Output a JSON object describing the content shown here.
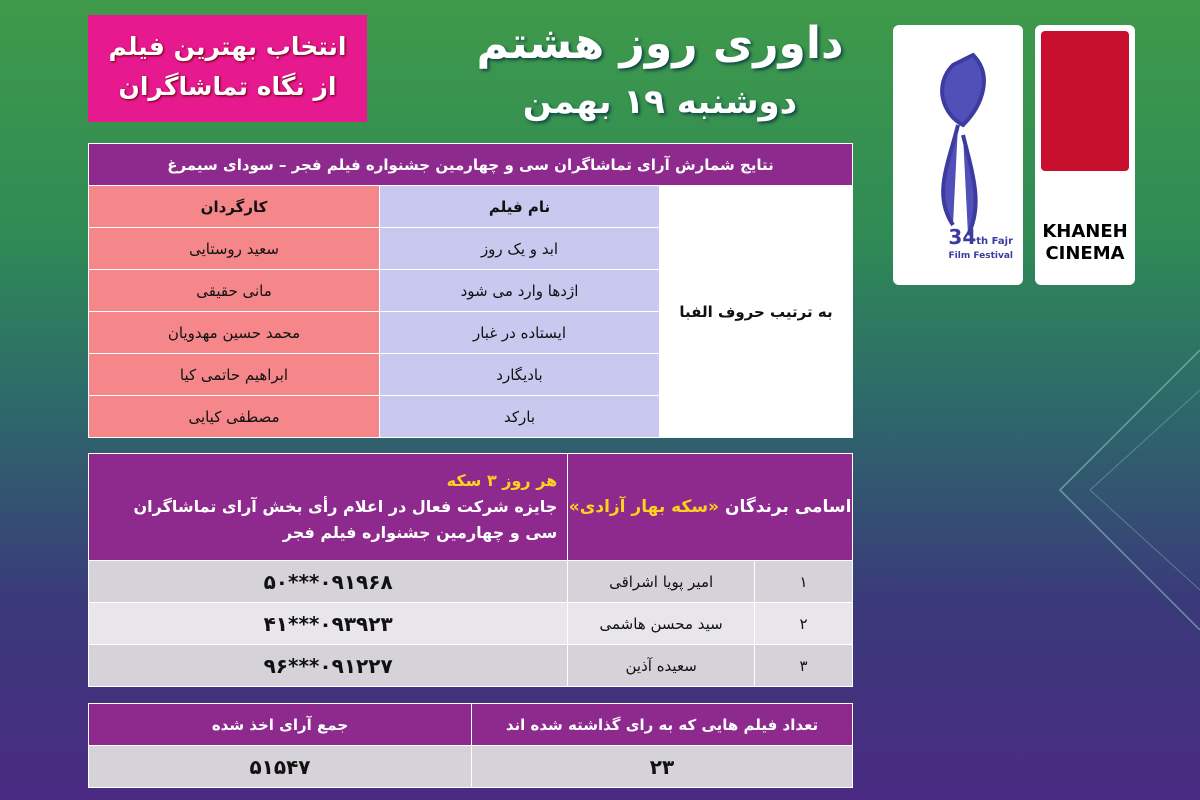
{
  "badge": {
    "line1": "انتخاب بهترین فیلم",
    "line2": "از نگاه تماشاگران"
  },
  "title": {
    "main": "داوری روز هشتم",
    "date": "دوشنبه ۱۹ بهمن"
  },
  "results": {
    "header": "نتایج شمارش آرای تماشاگران سی و چهارمین جشنواره فیلم فجر – سودای سیمرغ",
    "col_director": "کارگردان",
    "col_film": "نام فیلم",
    "order_note": "به ترتیب حروف الفبا",
    "rows": [
      {
        "film": "ابد و یک روز",
        "director": "سعید روستایی"
      },
      {
        "film": "اژدها وارد می شود",
        "director": "مانی حقیقی"
      },
      {
        "film": "ایستاده در غبار",
        "director": "محمد حسین مهدویان"
      },
      {
        "film": "بادیگارد",
        "director": "ابراهیم حاتمی کیا"
      },
      {
        "film": "بارکد",
        "director": "مصطفی کیایی"
      }
    ]
  },
  "winners": {
    "title_prefix": "اسامی برندگان",
    "title_highlight": "«سکه بهار آزادی»",
    "prize_highlight": "هر روز ۳ سکه",
    "prize_text": "جایزه شرکت فعال در اعلام رأی بخش آرای تماشاگران سی و چهارمین جشنواره فیلم فجر",
    "rows": [
      {
        "n": "۱",
        "name": "امیر پویا اشراقی",
        "phone": "۰۹۱۹۶۸***۵۰"
      },
      {
        "n": "۲",
        "name": "سید محسن هاشمی",
        "phone": "۰۹۳۹۲۳***۴۱"
      },
      {
        "n": "۳",
        "name": "سعیده آذین",
        "phone": "۰۹۱۲۲۷***۹۶"
      }
    ]
  },
  "totals": {
    "films_label": "تعداد فیلم هایی که به رای گذاشته شده اند",
    "films_value": "۲۳",
    "votes_label": "جمع آرای اخذ شده",
    "votes_value": "۵۱۵۴۷"
  },
  "logos": {
    "fajr": {
      "text1": "34",
      "text2": "th Fajr",
      "text3": "Film Festival"
    },
    "khaneh": {
      "text1": "KHANEH",
      "text2": "CINEMA"
    }
  },
  "colors": {
    "purple": "#8e2a8e",
    "pink": "#e6198f",
    "salmon": "#f5878a",
    "lavender": "#c9c8ef",
    "yellow": "#ffd21e"
  }
}
